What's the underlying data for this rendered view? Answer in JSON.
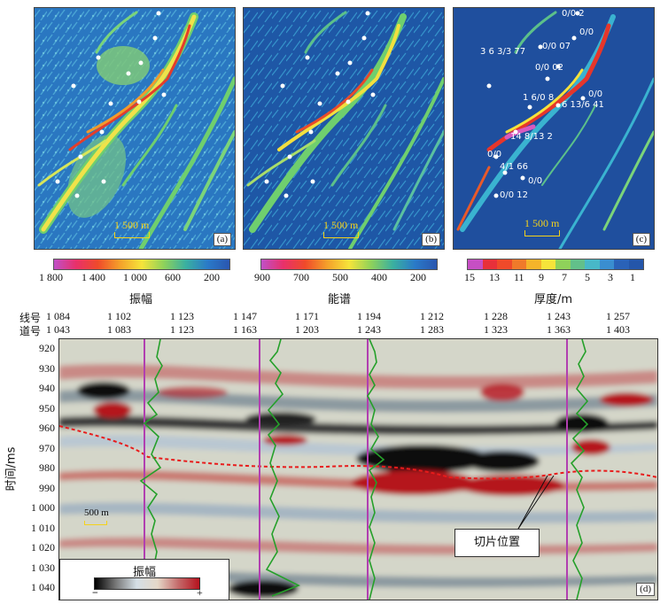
{
  "panels": {
    "a": {
      "scale_text": "1 500 m",
      "label": "(a)"
    },
    "b": {
      "scale_text": "1 500 m",
      "label": "(b)"
    },
    "c": {
      "scale_text": "1 500 m",
      "label": "(c)"
    }
  },
  "well_labels_c": [
    "0/0 2",
    "0/0",
    "3 6 3/3 77",
    "0/0 07",
    "0/0 02",
    "1 6/0 8",
    "0/0",
    "6 13/6 41",
    "14 8/13 2",
    "0/0",
    "4/1 66",
    "0/0",
    "0/0 12"
  ],
  "colorbars": {
    "amplitude": {
      "title": "振幅",
      "ticks": [
        "1 800",
        "1 400",
        "1 000",
        "600",
        "200"
      ]
    },
    "energy": {
      "title": "能谱",
      "ticks": [
        "900",
        "700",
        "500",
        "400",
        "200"
      ]
    },
    "thickness": {
      "title": "厚度/m",
      "ticks": [
        "15",
        "13",
        "11",
        "9",
        "7",
        "5",
        "3",
        "1"
      ]
    }
  },
  "section": {
    "line_label": "线号",
    "trace_label": "道号",
    "line_numbers": [
      "1 084",
      "1 102",
      "1 123",
      "1 147",
      "1 171",
      "1 194",
      "1 212",
      "1 228",
      "1 243",
      "1 257"
    ],
    "trace_numbers": [
      "1 043",
      "1 083",
      "1 123",
      "1 163",
      "1 203",
      "1 243",
      "1 283",
      "1 323",
      "1 363",
      "1 403"
    ],
    "y_axis_label": "时间/ms",
    "y_ticks": [
      "920",
      "930",
      "940",
      "950",
      "960",
      "970",
      "980",
      "990",
      "1 000",
      "1 010",
      "1 020",
      "1 030",
      "1 040"
    ],
    "scale_text": "500 m",
    "callout": "切片位置",
    "legend_title": "振幅",
    "legend_minus": "−",
    "legend_plus": "+",
    "label": "(d)"
  }
}
